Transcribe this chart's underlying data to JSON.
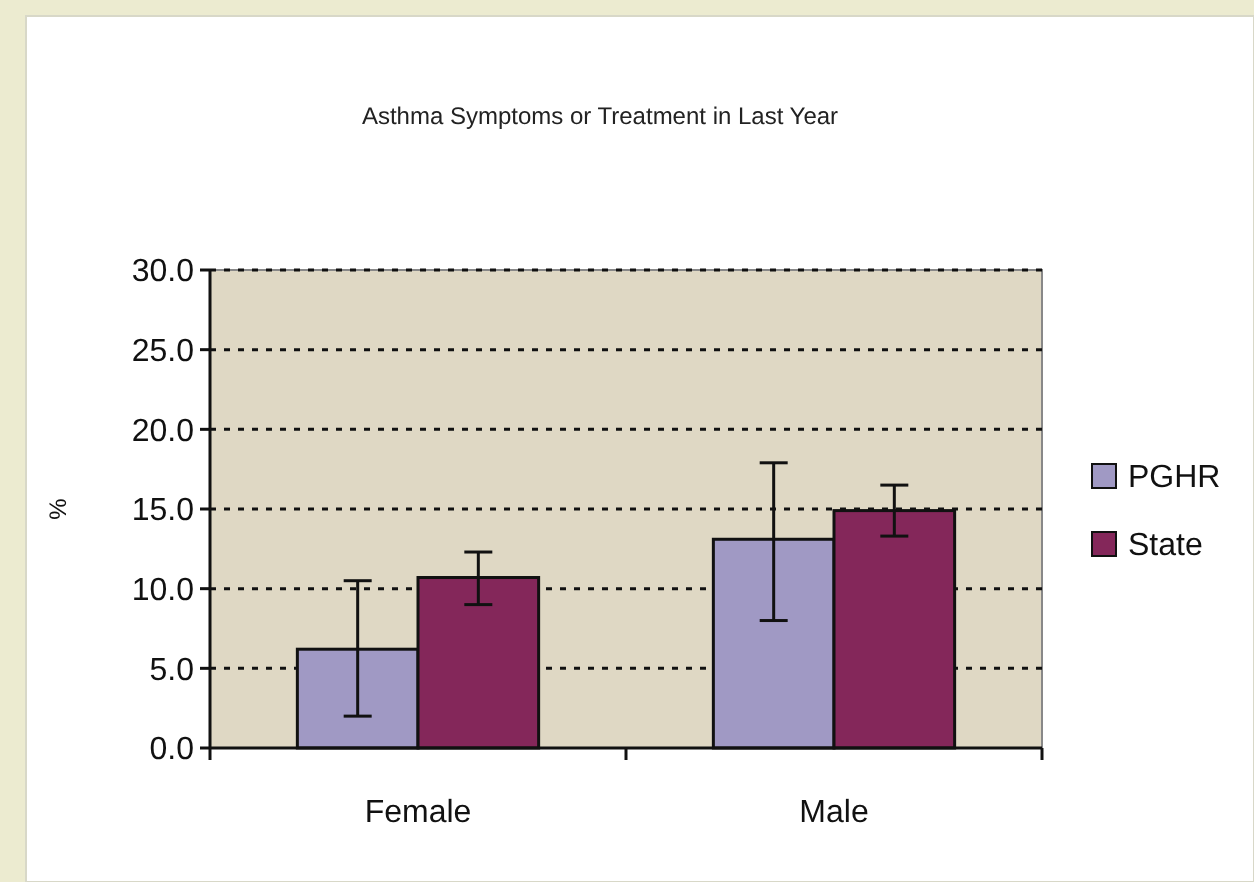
{
  "chart_data": {
    "type": "bar",
    "title": "Asthma Symptoms or Treatment in Last Year",
    "ylabel": "%",
    "categories": [
      "Female",
      "Male"
    ],
    "series": [
      {
        "name": "PGHR",
        "color": "#a099c4",
        "values": [
          6.2,
          13.1
        ],
        "errors": [
          [
            2.0,
            10.5
          ],
          [
            8.0,
            17.9
          ]
        ]
      },
      {
        "name": "State",
        "color": "#84275a",
        "values": [
          10.7,
          14.9
        ],
        "errors": [
          [
            9.0,
            12.3
          ],
          [
            13.3,
            16.5
          ]
        ]
      }
    ],
    "ylim": [
      0,
      30
    ],
    "yticks": [
      {
        "value": 0,
        "label": "0.0"
      },
      {
        "value": 5,
        "label": "5.0"
      },
      {
        "value": 10,
        "label": "10.0"
      },
      {
        "value": 15,
        "label": "15.0"
      },
      {
        "value": 20,
        "label": "20.0"
      },
      {
        "value": 25,
        "label": "25.0"
      },
      {
        "value": 30,
        "label": "30.0"
      }
    ],
    "grid": "y",
    "legend": "right"
  }
}
